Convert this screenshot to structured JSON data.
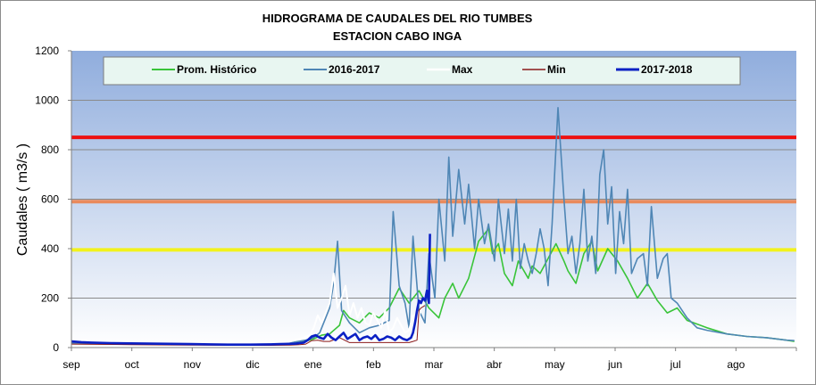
{
  "chart_data": {
    "type": "line",
    "title": "HIDROGRAMA DE CAUDALES DEL RIO  TUMBES",
    "subtitle": "ESTACION  CABO INGA",
    "ylabel": "Caudales ( m3/s )",
    "xlabel": "",
    "ylim": [
      0,
      1200
    ],
    "yticks": [
      0,
      200,
      400,
      600,
      800,
      1000,
      1200
    ],
    "months": [
      "sep",
      "oct",
      "nov",
      "dic",
      "ene",
      "feb",
      "mar",
      "abr",
      "may",
      "jun",
      "jul",
      "ago"
    ],
    "grid": true,
    "legend_position": "top",
    "thresholds": [
      {
        "value": 850,
        "color": "#ee1111"
      },
      {
        "value": 590,
        "color": "#e98a5c"
      },
      {
        "value": 395,
        "color": "#f2f21c"
      }
    ],
    "series": [
      {
        "name": "Prom. Histórico",
        "color": "#39c439",
        "width": 1.6,
        "x": [
          0,
          15,
          30,
          45,
          60,
          75,
          90,
          105,
          115,
          122,
          126,
          130,
          135,
          137,
          140,
          145,
          150,
          155,
          160,
          165,
          170,
          175,
          180,
          185,
          188,
          192,
          195,
          200,
          205,
          210,
          212,
          215,
          218,
          222,
          225,
          230,
          232,
          236,
          240,
          244,
          248,
          250,
          254,
          258,
          262,
          265,
          270,
          275,
          280,
          285,
          290,
          295,
          300,
          305,
          310,
          320,
          330,
          340,
          350,
          360,
          364
        ],
        "y": [
          20,
          17,
          14,
          14,
          12,
          12,
          12,
          13,
          20,
          35,
          50,
          55,
          90,
          150,
          120,
          100,
          140,
          120,
          160,
          240,
          180,
          230,
          160,
          120,
          200,
          260,
          200,
          280,
          430,
          480,
          380,
          420,
          300,
          250,
          350,
          280,
          330,
          300,
          360,
          420,
          350,
          310,
          260,
          380,
          430,
          310,
          400,
          350,
          280,
          200,
          260,
          190,
          140,
          160,
          110,
          80,
          55,
          45,
          40,
          30,
          25
        ]
      },
      {
        "name": "2016-2017",
        "color": "#4f86b5",
        "width": 1.6,
        "x": [
          0,
          15,
          30,
          45,
          60,
          75,
          90,
          105,
          112,
          118,
          122,
          125,
          128,
          130,
          132,
          134,
          136,
          140,
          145,
          150,
          155,
          160,
          162,
          165,
          168,
          170,
          172,
          175,
          178,
          180,
          183,
          185,
          188,
          190,
          192,
          195,
          198,
          200,
          203,
          205,
          208,
          210,
          213,
          215,
          218,
          220,
          222,
          224,
          226,
          228,
          230,
          232,
          234,
          236,
          238,
          240,
          242,
          245,
          248,
          250,
          252,
          254,
          256,
          258,
          260,
          262,
          264,
          266,
          268,
          270,
          272,
          274,
          276,
          278,
          280,
          282,
          285,
          288,
          290,
          292,
          295,
          298,
          300,
          302,
          305,
          310,
          315,
          320,
          330,
          340,
          350,
          360,
          364
        ],
        "y": [
          18,
          15,
          14,
          14,
          12,
          12,
          13,
          15,
          22,
          30,
          40,
          60,
          120,
          160,
          260,
          430,
          150,
          100,
          60,
          80,
          90,
          110,
          550,
          250,
          180,
          80,
          450,
          150,
          100,
          380,
          200,
          600,
          350,
          770,
          450,
          720,
          500,
          660,
          400,
          600,
          420,
          500,
          350,
          600,
          380,
          560,
          350,
          600,
          320,
          420,
          350,
          300,
          380,
          480,
          400,
          250,
          500,
          970,
          600,
          380,
          450,
          300,
          420,
          640,
          350,
          450,
          300,
          700,
          800,
          500,
          650,
          300,
          550,
          420,
          640,
          300,
          360,
          380,
          250,
          570,
          280,
          360,
          380,
          200,
          180,
          120,
          80,
          70,
          55,
          45,
          40,
          30,
          28
        ]
      },
      {
        "name": "Max",
        "color": "#ffffff",
        "width": 2,
        "x": [
          0,
          10,
          20,
          30,
          40,
          50,
          60,
          70,
          80,
          90,
          100,
          105,
          110,
          115,
          120,
          122,
          124,
          126,
          128,
          130,
          132,
          134,
          136,
          138,
          140,
          142,
          144,
          146,
          148,
          150,
          152,
          154,
          156,
          158,
          160,
          162,
          164,
          166,
          168,
          170,
          172,
          174,
          176,
          178
        ],
        "y": [
          30,
          25,
          22,
          18,
          15,
          14,
          13,
          13,
          12,
          12,
          14,
          18,
          24,
          35,
          50,
          80,
          130,
          100,
          140,
          180,
          300,
          160,
          200,
          250,
          130,
          180,
          120,
          160,
          100,
          90,
          140,
          110,
          80,
          150,
          60,
          80,
          120,
          90,
          60,
          70,
          130,
          90,
          160,
          210
        ]
      },
      {
        "name": "Min",
        "color": "#8b1a1a",
        "width": 1,
        "x": [
          0,
          30,
          60,
          90,
          100,
          110,
          115,
          118,
          121,
          124,
          127,
          130,
          135,
          140,
          145,
          150,
          155,
          160,
          165,
          170,
          172,
          174,
          175,
          176,
          178
        ],
        "y": [
          14,
          12,
          10,
          9,
          9,
          10,
          12,
          14,
          28,
          30,
          25,
          25,
          40,
          20,
          20,
          20,
          20,
          20,
          20,
          20,
          25,
          30,
          150,
          160,
          170
        ]
      },
      {
        "name": "2017-2018",
        "color": "#0b20c4",
        "width": 2.6,
        "x": [
          0,
          5,
          10,
          20,
          30,
          40,
          50,
          60,
          70,
          80,
          90,
          100,
          105,
          110,
          113,
          115,
          117,
          119,
          121,
          123,
          125,
          127,
          129,
          131,
          133,
          135,
          137,
          139,
          141,
          143,
          145,
          147,
          149,
          151,
          153,
          155,
          157,
          159,
          161,
          163,
          165,
          167,
          169,
          171,
          172,
          173,
          174,
          175,
          176,
          177,
          178,
          179,
          180,
          180.5
        ],
        "y": [
          25,
          22,
          20,
          18,
          17,
          16,
          15,
          14,
          13,
          12,
          12,
          13,
          14,
          15,
          16,
          18,
          20,
          30,
          45,
          50,
          40,
          35,
          55,
          40,
          30,
          45,
          60,
          35,
          45,
          55,
          30,
          40,
          45,
          35,
          50,
          30,
          35,
          45,
          40,
          30,
          45,
          35,
          30,
          40,
          60,
          100,
          150,
          190,
          180,
          200,
          190,
          230,
          180,
          460
        ]
      }
    ]
  }
}
